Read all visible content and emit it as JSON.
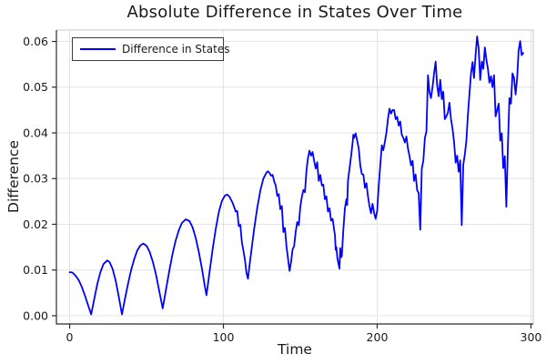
{
  "colors": {
    "line": "#0000ff",
    "grid": "#e4e4e4",
    "axis": "#2b2b2b",
    "frame_light": "#c9c9c9",
    "text": "#1a1a1a",
    "background": "#ffffff"
  },
  "legend": {
    "entries": [
      {
        "label": "Difference in States",
        "color": "#0000ff"
      }
    ]
  },
  "chart_data": {
    "type": "line",
    "title": "Absolute Difference in States Over Time",
    "xlabel": "Time",
    "ylabel": "Difference",
    "xlim": [
      -8.6,
      301.5
    ],
    "ylim": [
      -0.0018,
      0.0625
    ],
    "x_ticks": [
      0,
      100,
      200,
      300
    ],
    "x_tick_labels": [
      "0",
      "100",
      "200",
      "300"
    ],
    "y_ticks": [
      0.0,
      0.01,
      0.02,
      0.03,
      0.04,
      0.05,
      0.06
    ],
    "y_tick_labels": [
      "0.00",
      "0.01",
      "0.02",
      "0.03",
      "0.04",
      "0.05",
      "0.06"
    ],
    "grid": true,
    "legend_position": "top-left",
    "series": [
      {
        "name": "Difference in States",
        "color": "#0000ff",
        "points": [
          [
            0,
            0.0095
          ],
          [
            1,
            0.0095
          ],
          [
            2,
            0.0094
          ],
          [
            4,
            0.0087
          ],
          [
            6,
            0.0077
          ],
          [
            8,
            0.0062
          ],
          [
            10,
            0.0044
          ],
          [
            12,
            0.0023
          ],
          [
            14,
            0.0003
          ],
          [
            16,
            0.0037
          ],
          [
            18,
            0.0069
          ],
          [
            20,
            0.0095
          ],
          [
            22,
            0.0113
          ],
          [
            24.5,
            0.0121
          ],
          [
            26,
            0.0117
          ],
          [
            28,
            0.0102
          ],
          [
            30,
            0.0076
          ],
          [
            32,
            0.0041
          ],
          [
            34,
            0.0003
          ],
          [
            36,
            0.0038
          ],
          [
            38,
            0.007
          ],
          [
            40,
            0.01
          ],
          [
            42,
            0.0124
          ],
          [
            44,
            0.0143
          ],
          [
            46,
            0.0154
          ],
          [
            48,
            0.0158
          ],
          [
            50,
            0.0153
          ],
          [
            52,
            0.014
          ],
          [
            54,
            0.0119
          ],
          [
            56,
            0.0092
          ],
          [
            58,
            0.0059
          ],
          [
            60.5,
            0.0016
          ],
          [
            63,
            0.0064
          ],
          [
            65,
            0.0102
          ],
          [
            67,
            0.0136
          ],
          [
            69,
            0.0165
          ],
          [
            71,
            0.0187
          ],
          [
            73,
            0.0203
          ],
          [
            75.5,
            0.0211
          ],
          [
            78,
            0.0207
          ],
          [
            80,
            0.0193
          ],
          [
            82,
            0.017
          ],
          [
            84,
            0.0139
          ],
          [
            86,
            0.0103
          ],
          [
            88,
            0.0063
          ],
          [
            89,
            0.0045
          ],
          [
            91,
            0.0096
          ],
          [
            93,
            0.0146
          ],
          [
            95,
            0.019
          ],
          [
            97,
            0.0226
          ],
          [
            99,
            0.0251
          ],
          [
            101,
            0.0263
          ],
          [
            102.5,
            0.0265
          ],
          [
            104,
            0.026
          ],
          [
            106,
            0.0247
          ],
          [
            107,
            0.0238
          ],
          [
            108,
            0.0228
          ],
          [
            109,
            0.0229
          ],
          [
            110,
            0.0196
          ],
          [
            111,
            0.0199
          ],
          [
            112,
            0.0161
          ],
          [
            113,
            0.0142
          ],
          [
            114,
            0.0122
          ],
          [
            115,
            0.0093
          ],
          [
            116,
            0.0081
          ],
          [
            117,
            0.011
          ],
          [
            118,
            0.0137
          ],
          [
            120,
            0.019
          ],
          [
            122,
            0.0236
          ],
          [
            124,
            0.0274
          ],
          [
            126,
            0.03
          ],
          [
            128,
            0.0313
          ],
          [
            129,
            0.0316
          ],
          [
            130,
            0.0312
          ],
          [
            131,
            0.0306
          ],
          [
            132,
            0.0308
          ],
          [
            133,
            0.0294
          ],
          [
            134,
            0.0285
          ],
          [
            135,
            0.0262
          ],
          [
            136,
            0.0266
          ],
          [
            137,
            0.0233
          ],
          [
            138,
            0.024
          ],
          [
            139,
            0.0183
          ],
          [
            140,
            0.0192
          ],
          [
            141,
            0.0152
          ],
          [
            142,
            0.0125
          ],
          [
            143,
            0.0098
          ],
          [
            144,
            0.0118
          ],
          [
            145,
            0.0145
          ],
          [
            146,
            0.0152
          ],
          [
            147,
            0.0183
          ],
          [
            148,
            0.0205
          ],
          [
            149,
            0.0198
          ],
          [
            150,
            0.0238
          ],
          [
            151,
            0.026
          ],
          [
            152,
            0.0275
          ],
          [
            153,
            0.027
          ],
          [
            154,
            0.0318
          ],
          [
            155,
            0.0345
          ],
          [
            156,
            0.0361
          ],
          [
            157,
            0.035
          ],
          [
            158,
            0.0358
          ],
          [
            159,
            0.0339
          ],
          [
            160,
            0.0322
          ],
          [
            161,
            0.0336
          ],
          [
            162,
            0.0295
          ],
          [
            163,
            0.0308
          ],
          [
            164,
            0.0285
          ],
          [
            165,
            0.0287
          ],
          [
            166,
            0.0255
          ],
          [
            167,
            0.0261
          ],
          [
            168,
            0.0228
          ],
          [
            169,
            0.0235
          ],
          [
            170,
            0.0208
          ],
          [
            171,
            0.0212
          ],
          [
            172,
            0.0188
          ],
          [
            172.5,
            0.0177
          ],
          [
            173,
            0.0144
          ],
          [
            173.5,
            0.015
          ],
          [
            174,
            0.0128
          ],
          [
            175,
            0.0111
          ],
          [
            175.5,
            0.0103
          ],
          [
            176,
            0.0148
          ],
          [
            176.5,
            0.0128
          ],
          [
            177,
            0.013
          ],
          [
            178,
            0.0188
          ],
          [
            179,
            0.0235
          ],
          [
            180,
            0.0255
          ],
          [
            180.5,
            0.0242
          ],
          [
            181,
            0.0295
          ],
          [
            182,
            0.0322
          ],
          [
            183,
            0.0349
          ],
          [
            184,
            0.0379
          ],
          [
            184.5,
            0.0396
          ],
          [
            185,
            0.0389
          ],
          [
            186,
            0.0399
          ],
          [
            187,
            0.0383
          ],
          [
            188,
            0.0366
          ],
          [
            189,
            0.0329
          ],
          [
            190,
            0.031
          ],
          [
            191,
            0.0309
          ],
          [
            192,
            0.028
          ],
          [
            193,
            0.029
          ],
          [
            194,
            0.0262
          ],
          [
            195,
            0.024
          ],
          [
            196,
            0.0224
          ],
          [
            197,
            0.0245
          ],
          [
            198,
            0.0225
          ],
          [
            199,
            0.0212
          ],
          [
            200,
            0.023
          ],
          [
            201,
            0.0285
          ],
          [
            202,
            0.033
          ],
          [
            203,
            0.0373
          ],
          [
            204,
            0.0362
          ],
          [
            205,
            0.038
          ],
          [
            206,
            0.04
          ],
          [
            207,
            0.043
          ],
          [
            208,
            0.0453
          ],
          [
            209,
            0.0442
          ],
          [
            210,
            0.045
          ],
          [
            211,
            0.045
          ],
          [
            212,
            0.043
          ],
          [
            213,
            0.0435
          ],
          [
            214,
            0.0416
          ],
          [
            215,
            0.0425
          ],
          [
            216,
            0.0396
          ],
          [
            217,
            0.0389
          ],
          [
            218,
            0.0379
          ],
          [
            219,
            0.0392
          ],
          [
            220,
            0.0366
          ],
          [
            221,
            0.0349
          ],
          [
            222,
            0.0329
          ],
          [
            223,
            0.0339
          ],
          [
            224,
            0.0295
          ],
          [
            225,
            0.0309
          ],
          [
            226,
            0.0275
          ],
          [
            227,
            0.0268
          ],
          [
            228,
            0.0188
          ],
          [
            229,
            0.0322
          ],
          [
            230,
            0.0339
          ],
          [
            231,
            0.0389
          ],
          [
            232,
            0.0403
          ],
          [
            233,
            0.0526
          ],
          [
            234,
            0.049
          ],
          [
            235,
            0.0476
          ],
          [
            236,
            0.05
          ],
          [
            237,
            0.053
          ],
          [
            238,
            0.0556
          ],
          [
            239,
            0.0504
          ],
          [
            240,
            0.048
          ],
          [
            241,
            0.0516
          ],
          [
            242,
            0.0474
          ],
          [
            243,
            0.049
          ],
          [
            244,
            0.043
          ],
          [
            245,
            0.0436
          ],
          [
            246,
            0.0444
          ],
          [
            247,
            0.0466
          ],
          [
            248,
            0.043
          ],
          [
            249,
            0.0409
          ],
          [
            250,
            0.038
          ],
          [
            251,
            0.0335
          ],
          [
            252,
            0.035
          ],
          [
            253,
            0.0315
          ],
          [
            254,
            0.034
          ],
          [
            255,
            0.0198
          ],
          [
            256,
            0.033
          ],
          [
            257,
            0.0353
          ],
          [
            258,
            0.0383
          ],
          [
            259,
            0.044
          ],
          [
            260,
            0.0486
          ],
          [
            261,
            0.053
          ],
          [
            262,
            0.0555
          ],
          [
            263,
            0.052
          ],
          [
            264,
            0.057
          ],
          [
            265,
            0.0611
          ],
          [
            266,
            0.0585
          ],
          [
            267,
            0.0516
          ],
          [
            268,
            0.0556
          ],
          [
            269,
            0.054
          ],
          [
            270,
            0.0587
          ],
          [
            271,
            0.056
          ],
          [
            272,
            0.054
          ],
          [
            273,
            0.051
          ],
          [
            274,
            0.0524
          ],
          [
            275,
            0.05
          ],
          [
            276,
            0.0526
          ],
          [
            277,
            0.0436
          ],
          [
            278,
            0.045
          ],
          [
            279,
            0.0464
          ],
          [
            280,
            0.0383
          ],
          [
            281,
            0.0399
          ],
          [
            282,
            0.0323
          ],
          [
            283,
            0.0349
          ],
          [
            284,
            0.0238
          ],
          [
            285,
            0.037
          ],
          [
            286,
            0.0476
          ],
          [
            287,
            0.0464
          ],
          [
            288,
            0.053
          ],
          [
            289,
            0.052
          ],
          [
            290,
            0.0484
          ],
          [
            291,
            0.052
          ],
          [
            292,
            0.058
          ],
          [
            293,
            0.0601
          ],
          [
            294,
            0.057
          ],
          [
            295,
            0.0575
          ]
        ]
      }
    ]
  }
}
